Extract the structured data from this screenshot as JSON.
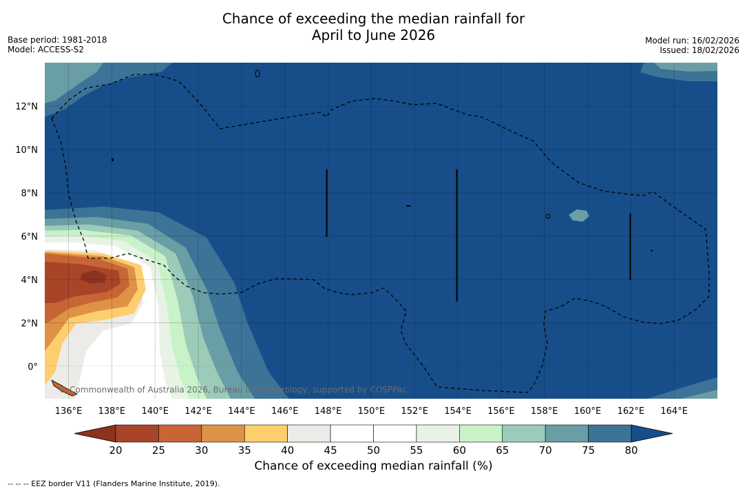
{
  "header": {
    "title_line1": "Chance of exceeding the median rainfall for",
    "title_line2": "April to June 2026",
    "base_period": "Base period: 1981-2018",
    "model": "Model: ACCESS-S2",
    "model_run": "Model run: 16/02/2026",
    "issued": "Issued: 18/02/2026"
  },
  "map": {
    "watermark": "© Commonwealth of Australia 2026, Bureau of Meteorology, supported by COSPPac",
    "colors": {
      "c80": "#174e8a",
      "c75": "#3d7397",
      "c70": "#6a9ea6",
      "c65": "#9ccbb9",
      "c60": "#c8f3c8",
      "c55": "#e8f3e6",
      "c50": "#ffffff",
      "c45": "#ecebe8",
      "c40": "#fdce6e",
      "c35": "#df9145",
      "c30": "#c76534",
      "c25": "#a84528",
      "c20": "#8c3320"
    }
  },
  "chart_data": {
    "type": "heatmap",
    "title": "Chance of exceeding the median rainfall for April to June 2026",
    "x_ticks": [
      "136°E",
      "138°E",
      "140°E",
      "142°E",
      "144°E",
      "146°E",
      "148°E",
      "150°E",
      "152°E",
      "154°E",
      "156°E",
      "158°E",
      "160°E",
      "162°E",
      "164°E"
    ],
    "x_tick_values": [
      136,
      138,
      140,
      142,
      144,
      146,
      148,
      150,
      152,
      154,
      156,
      158,
      160,
      162,
      164
    ],
    "y_ticks": [
      "12°N",
      "10°N",
      "8°N",
      "6°N",
      "4°N",
      "2°N",
      "0°"
    ],
    "y_tick_values": [
      12,
      10,
      8,
      6,
      4,
      2,
      0
    ],
    "xlim": [
      134.9,
      166.0
    ],
    "ylim": [
      -1.5,
      14.0
    ],
    "colorbar": {
      "label": "Chance of exceeding median rainfall (%)",
      "ticks": [
        "20",
        "25",
        "30",
        "35",
        "40",
        "45",
        "50",
        "55",
        "60",
        "65",
        "70",
        "75",
        "80"
      ],
      "bins": [
        {
          "range": "<20",
          "color": "#8c3320"
        },
        {
          "range": "20-25",
          "color": "#a84528"
        },
        {
          "range": "25-30",
          "color": "#c76534"
        },
        {
          "range": "30-35",
          "color": "#df9145"
        },
        {
          "range": "35-40",
          "color": "#fdce6e"
        },
        {
          "range": "40-45",
          "color": "#ecebe8"
        },
        {
          "range": "45-50",
          "color": "#ffffff"
        },
        {
          "range": "50-55",
          "color": "#ffffff"
        },
        {
          "range": "55-60",
          "color": "#e8f3e6"
        },
        {
          "range": "60-65",
          "color": "#c8f3c8"
        },
        {
          "range": "65-70",
          "color": "#9ccbb9"
        },
        {
          "range": "70-75",
          "color": "#6a9ea6"
        },
        {
          "range": "75-80",
          "color": "#3d7397"
        },
        {
          "range": ">80",
          "color": "#174e8a"
        }
      ]
    }
  },
  "footer": {
    "legend_text": "--  --  -- EEZ border V11 (Flanders Marine Institute, 2019)."
  }
}
